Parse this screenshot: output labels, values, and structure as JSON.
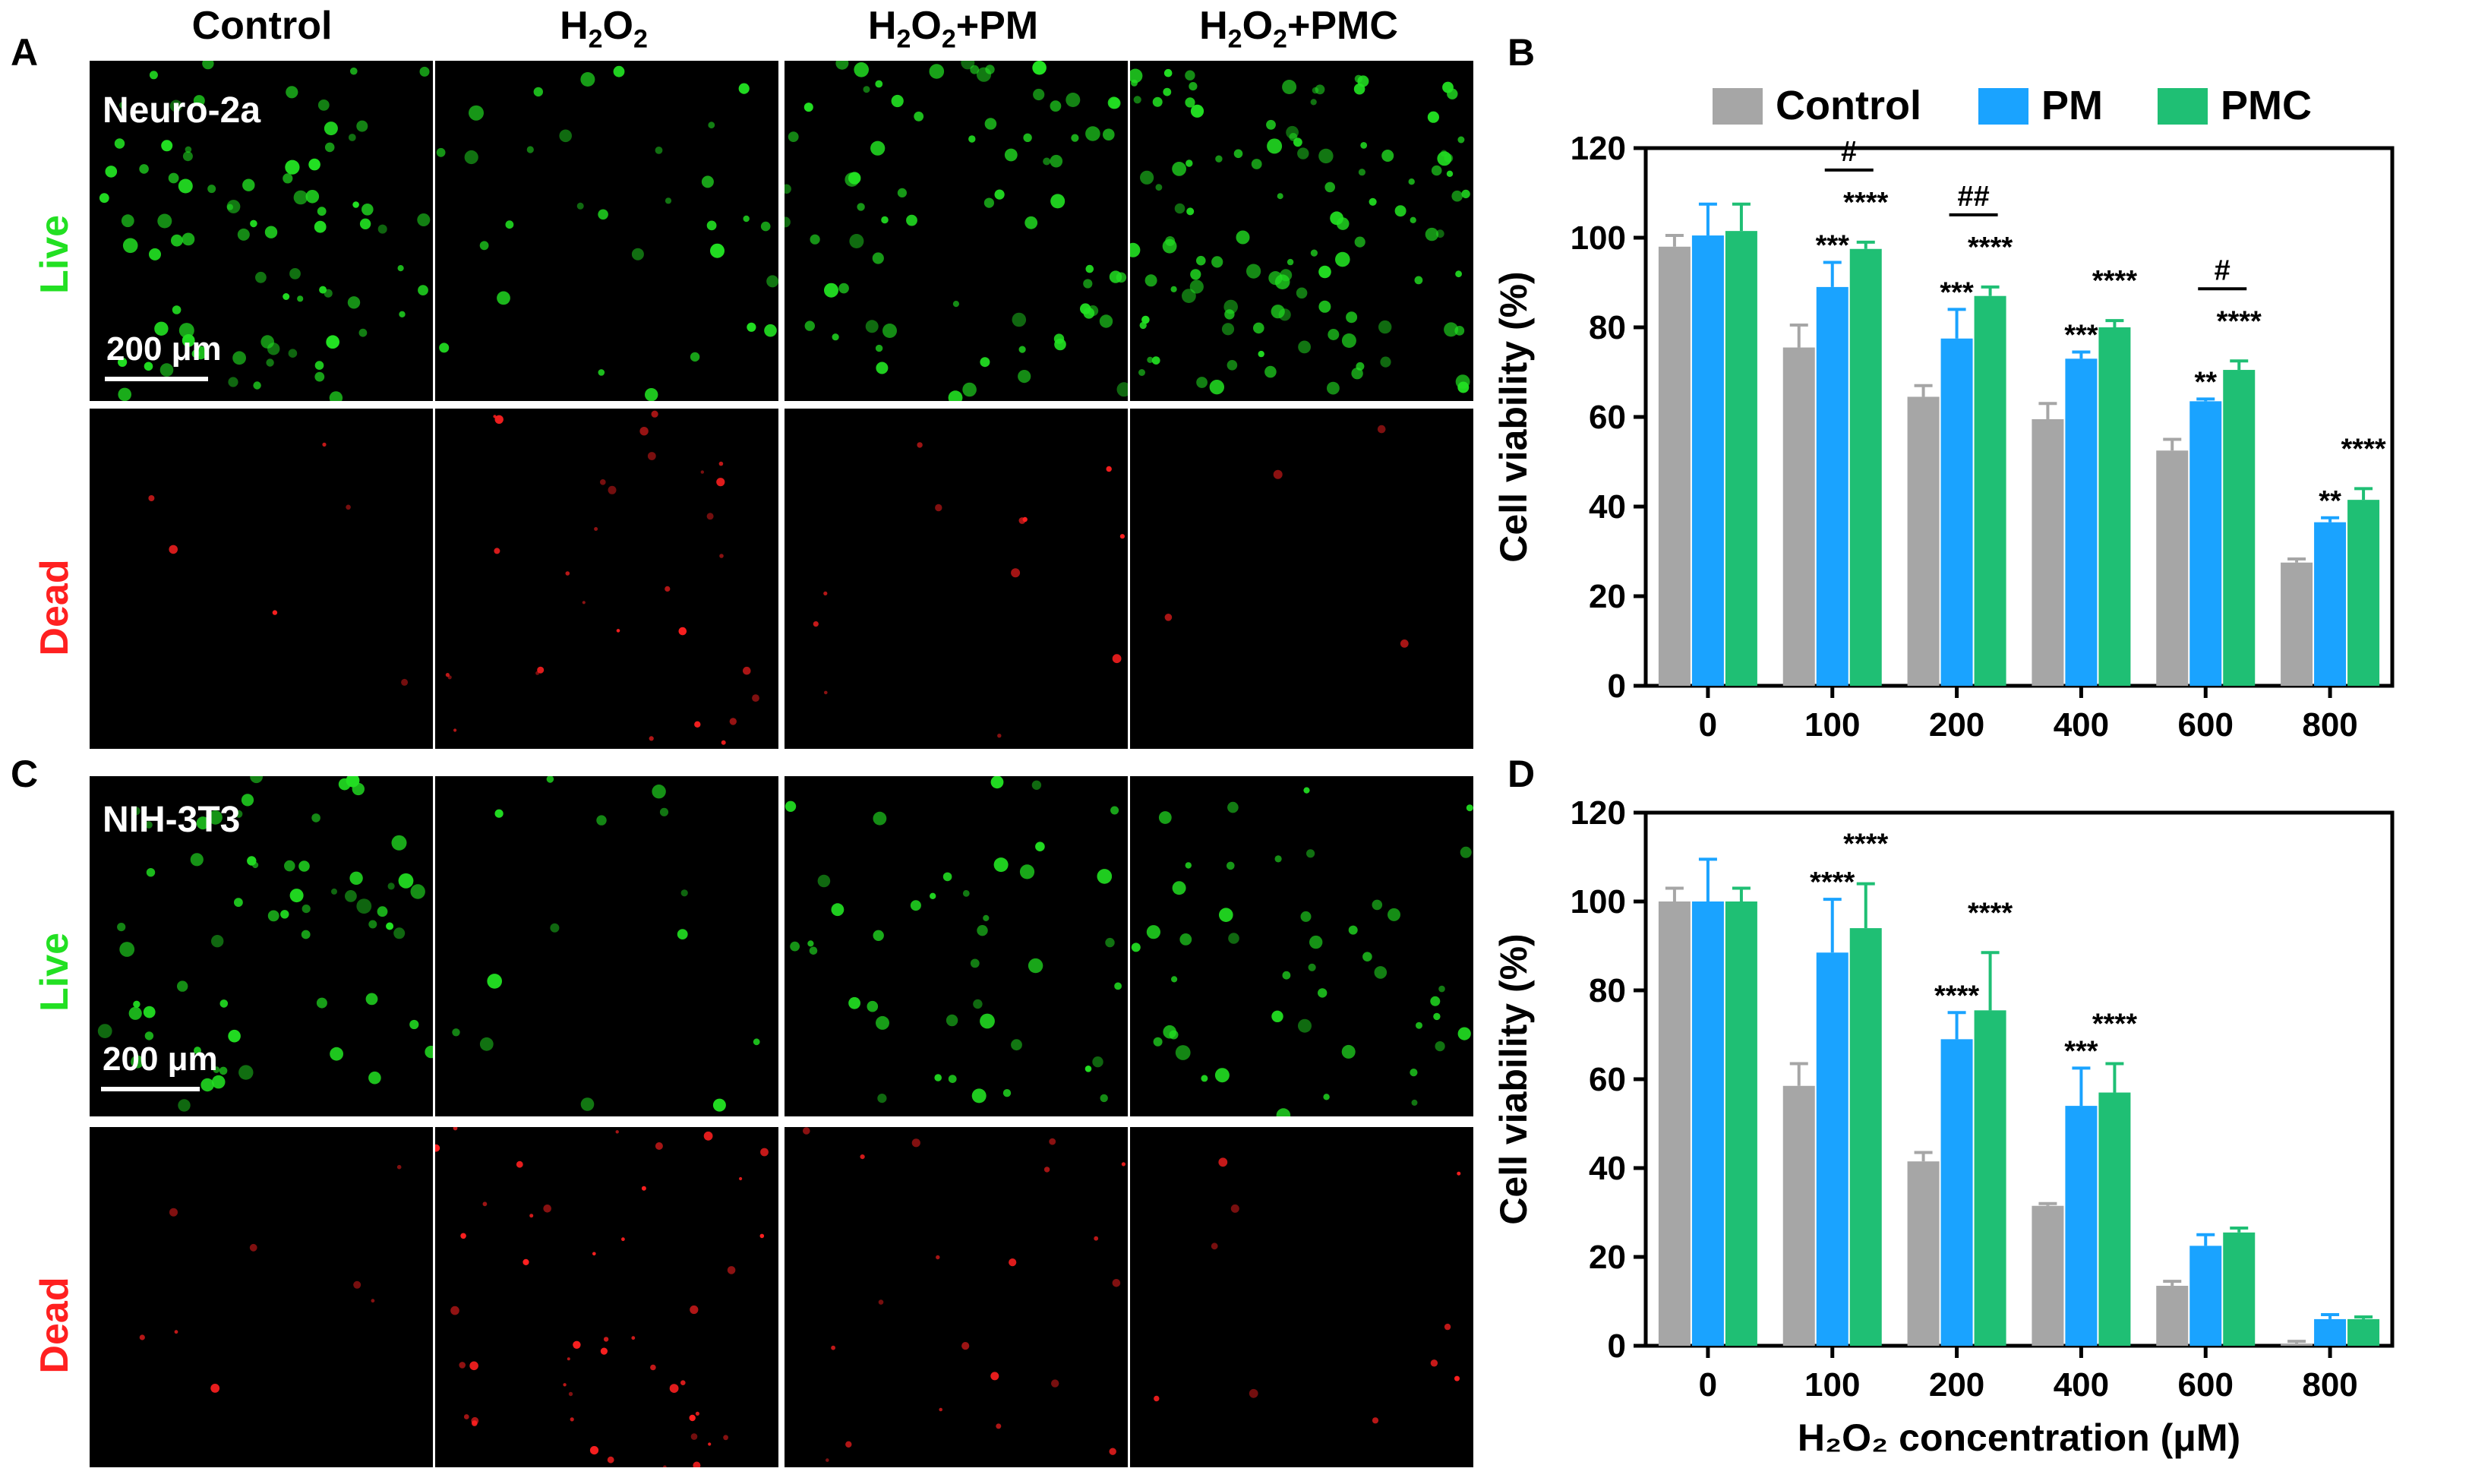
{
  "panels": {
    "A": "A",
    "B": "B",
    "C": "C",
    "D": "D"
  },
  "column_headers": [
    {
      "main": "Control",
      "sub": "",
      "tail": ""
    },
    {
      "main": "H",
      "sub": "2",
      "tail": "O",
      "sub2": "2",
      "tail2": ""
    },
    {
      "main": "H",
      "sub": "2",
      "tail": "O",
      "sub2": "2",
      "tail2": "+PM"
    },
    {
      "main": "H",
      "sub": "2",
      "tail": "O",
      "sub2": "2",
      "tail2": "+PMC"
    }
  ],
  "row_labels": {
    "live": "Live",
    "dead": "Dead"
  },
  "cell_lines": {
    "top": "Neuro-2a",
    "bottom": "NIH-3T3"
  },
  "scale_bar": "200 μm",
  "colors": {
    "live": "#22e022",
    "dead": "#ff2020",
    "control": "#a6a6a6",
    "pm": "#1aa3ff",
    "pmc": "#1fbf74"
  },
  "legend": [
    "Control",
    "PM",
    "PMC"
  ],
  "chart_data": [
    {
      "type": "bar",
      "panel": "B",
      "categories": [
        "0",
        "100",
        "200",
        "400",
        "600",
        "800"
      ],
      "series": [
        {
          "name": "Control",
          "values": [
            98,
            75.5,
            64.5,
            59.5,
            52.5,
            27.5
          ],
          "errors": [
            2.5,
            5,
            2.5,
            3.5,
            2.5,
            0.8
          ]
        },
        {
          "name": "PM",
          "values": [
            100.5,
            89,
            77.5,
            73,
            63.5,
            36.5
          ],
          "errors": [
            7,
            5.5,
            6.5,
            1.5,
            0.5,
            1
          ]
        },
        {
          "name": "PMC",
          "values": [
            101.5,
            97.5,
            87,
            80,
            70.5,
            41.5
          ],
          "errors": [
            6,
            1.5,
            2,
            1.5,
            2,
            2.5
          ]
        }
      ],
      "ylabel": "Cell viability (%)",
      "xlabel": "",
      "ylim": [
        0,
        120
      ],
      "yticks": [
        0,
        20,
        40,
        60,
        80,
        100,
        120
      ],
      "significance": [
        {
          "category": 1,
          "series": 1,
          "text": "***"
        },
        {
          "category": 1,
          "series": 2,
          "text": "****"
        },
        {
          "category": 2,
          "series": 1,
          "text": "***"
        },
        {
          "category": 2,
          "series": 2,
          "text": "****"
        },
        {
          "category": 3,
          "series": 1,
          "text": "***"
        },
        {
          "category": 3,
          "series": 2,
          "text": "****"
        },
        {
          "category": 4,
          "series": 1,
          "text": "**"
        },
        {
          "category": 4,
          "series": 2,
          "text": "****"
        },
        {
          "category": 5,
          "series": 1,
          "text": "**"
        },
        {
          "category": 5,
          "series": 2,
          "text": "****"
        }
      ],
      "brackets": [
        {
          "category": 1,
          "text": "#"
        },
        {
          "category": 2,
          "text": "##"
        },
        {
          "category": 4,
          "text": "#"
        }
      ]
    },
    {
      "type": "bar",
      "panel": "D",
      "categories": [
        "0",
        "100",
        "200",
        "400",
        "600",
        "800"
      ],
      "series": [
        {
          "name": "Control",
          "values": [
            100,
            58.5,
            41.5,
            31.5,
            13.5,
            0.5
          ],
          "errors": [
            3,
            5,
            2,
            0.5,
            1,
            0.5
          ]
        },
        {
          "name": "PM",
          "values": [
            100,
            88.5,
            69,
            54,
            22.5,
            6
          ],
          "errors": [
            9.5,
            12,
            6,
            8.5,
            2.5,
            1
          ]
        },
        {
          "name": "PMC",
          "values": [
            100,
            94,
            75.5,
            57,
            25.5,
            6
          ],
          "errors": [
            3,
            10,
            13,
            6.5,
            1,
            0.5
          ]
        }
      ],
      "ylabel": "Cell viability (%)",
      "xlabel": "H₂O₂ concentration (μM)",
      "ylim": [
        0,
        120
      ],
      "yticks": [
        0,
        20,
        40,
        60,
        80,
        100,
        120
      ],
      "significance": [
        {
          "category": 1,
          "series": 1,
          "text": "****"
        },
        {
          "category": 1,
          "series": 2,
          "text": "****"
        },
        {
          "category": 2,
          "series": 1,
          "text": "****"
        },
        {
          "category": 2,
          "series": 2,
          "text": "****"
        },
        {
          "category": 3,
          "series": 1,
          "text": "***"
        },
        {
          "category": 3,
          "series": 2,
          "text": "****"
        }
      ],
      "brackets": []
    }
  ]
}
